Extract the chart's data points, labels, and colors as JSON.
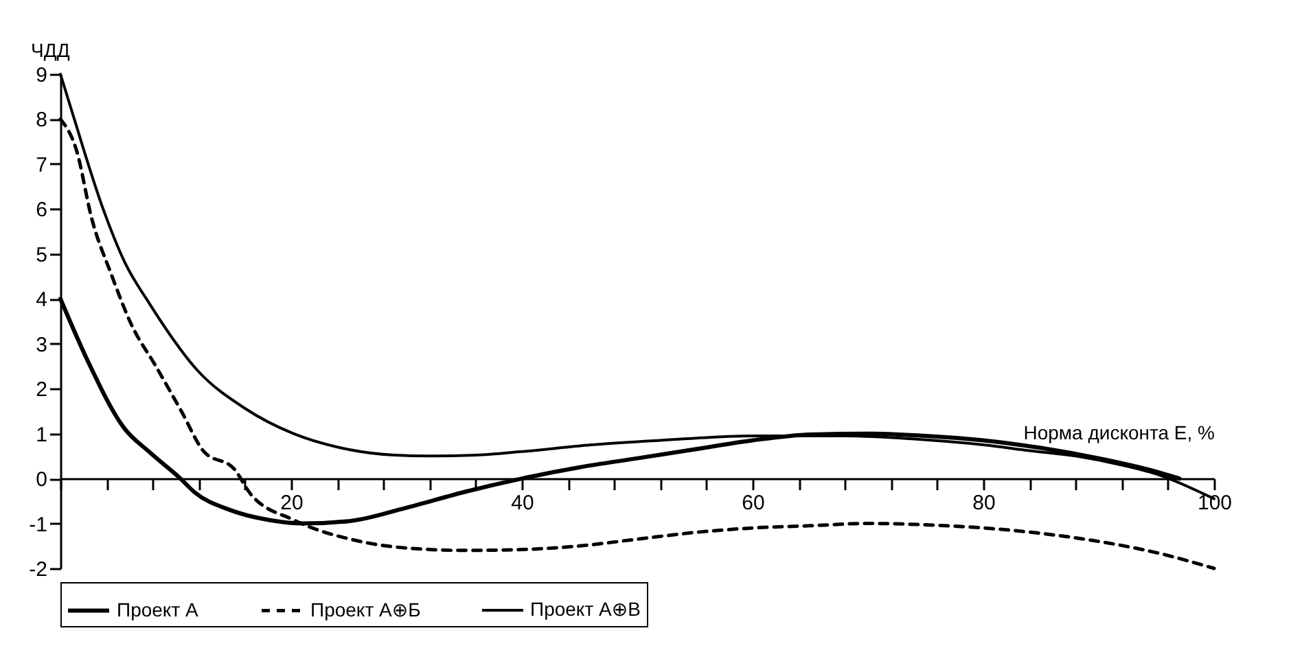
{
  "chart_data": {
    "type": "line",
    "xlabel": "Норма дисконта E, %",
    "ylabel": "ЧДД",
    "xlim": [
      0,
      100
    ],
    "ylim": [
      -2,
      9
    ],
    "xticks": [
      {
        "value": 0,
        "label": null
      },
      {
        "value": 4,
        "label": null
      },
      {
        "value": 8,
        "label": null
      },
      {
        "value": 12,
        "label": null
      },
      {
        "value": 16,
        "label": null
      },
      20,
      {
        "value": 24,
        "label": null
      },
      {
        "value": 28,
        "label": null
      },
      {
        "value": 32,
        "label": null
      },
      {
        "value": 36,
        "label": null
      },
      40,
      {
        "value": 44,
        "label": null
      },
      {
        "value": 48,
        "label": null
      },
      {
        "value": 52,
        "label": null
      },
      {
        "value": 56,
        "label": null
      },
      60,
      {
        "value": 64,
        "label": null
      },
      {
        "value": 68,
        "label": null
      },
      {
        "value": 72,
        "label": null
      },
      {
        "value": 76,
        "label": null
      },
      80,
      {
        "value": 84,
        "label": null
      },
      {
        "value": 88,
        "label": null
      },
      {
        "value": 92,
        "label": null
      },
      {
        "value": 96,
        "label": null
      },
      100
    ],
    "yticks": [
      -2,
      -1,
      0,
      1,
      2,
      3,
      4,
      5,
      6,
      7,
      8,
      9
    ],
    "grid": false,
    "legend": "bottom",
    "marker": "none",
    "series": [
      {
        "name": "Проект А",
        "color": "#000000",
        "line_style": "solid",
        "x": [
          0,
          2.4,
          5.5,
          7.8,
          10.4,
          11.6,
          14.7,
          18,
          21,
          25,
          30,
          35,
          40,
          45,
          50,
          55,
          60,
          65,
          70,
          75,
          80,
          85,
          90,
          94,
          97
        ],
        "values": [
          4,
          2.6,
          1.13,
          0.57,
          0,
          -0.3,
          -0.7,
          -0.92,
          -1.0,
          -0.95,
          -0.65,
          -0.3,
          0,
          0.25,
          0.45,
          0.65,
          0.85,
          0.98,
          1.0,
          0.95,
          0.85,
          0.68,
          0.45,
          0.22,
          0
        ]
      },
      {
        "name": "Проект А⊕Б",
        "color": "#000000",
        "line_style": "dashed",
        "x": [
          0,
          1.4,
          2.7,
          4.4,
          6.2,
          8.2,
          10.5,
          12.4,
          15.1,
          16.5,
          20.2,
          26,
          32,
          35,
          40,
          45,
          50,
          55,
          60,
          65,
          70,
          75,
          80,
          85,
          90,
          95,
          100
        ],
        "values": [
          8,
          7.3,
          5.8,
          4.55,
          3.4,
          2.53,
          1.49,
          0.61,
          0.2,
          -0.35,
          -0.92,
          -1.4,
          -1.58,
          -1.6,
          -1.58,
          -1.5,
          -1.35,
          -1.2,
          -1.1,
          -1.05,
          -1.0,
          -1.03,
          -1.1,
          -1.22,
          -1.4,
          -1.65,
          -2.0
        ]
      },
      {
        "name": "Проект А⊕В",
        "color": "#000000",
        "line_style": "solid",
        "x": [
          0,
          1.2,
          3.7,
          5.6,
          7.7,
          11.9,
          16,
          20.2,
          24,
          29,
          32,
          36,
          40,
          46,
          52,
          60,
          68,
          74,
          80,
          84,
          88,
          92,
          95,
          100
        ],
        "values": [
          9,
          8.0,
          6.0,
          4.8,
          3.9,
          2.4,
          1.56,
          1.0,
          0.7,
          0.52,
          0.5,
          0.52,
          0.6,
          0.75,
          0.85,
          0.95,
          0.95,
          0.88,
          0.75,
          0.62,
          0.5,
          0.3,
          0.1,
          -0.45
        ]
      }
    ]
  }
}
